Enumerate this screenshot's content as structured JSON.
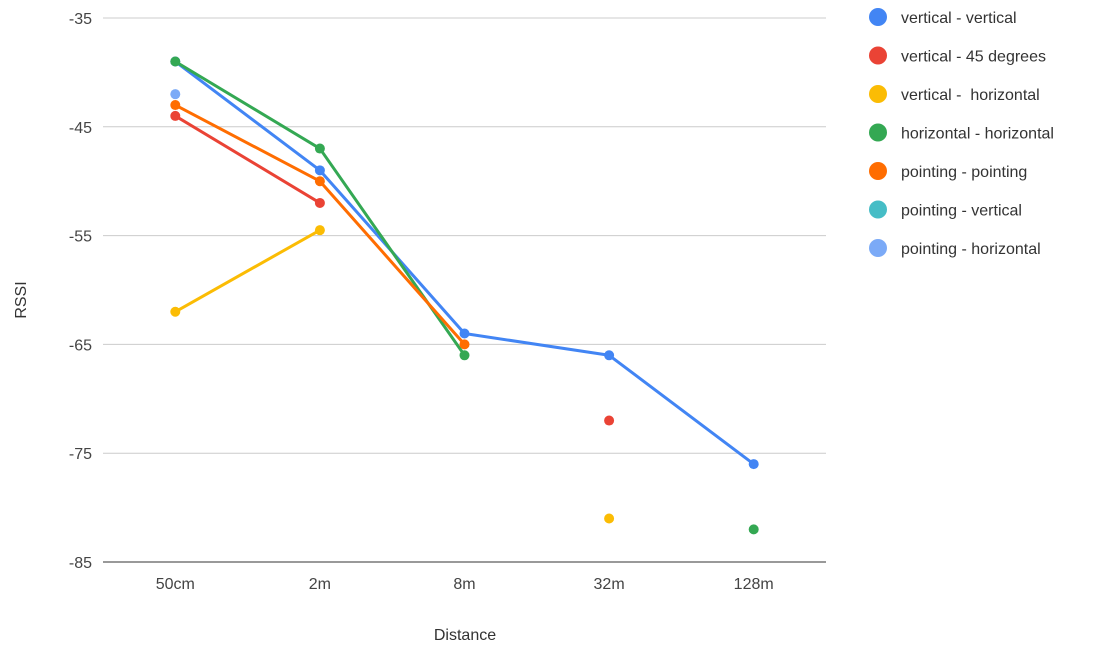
{
  "chart_data": {
    "type": "line",
    "title": "",
    "xlabel": "Distance",
    "ylabel": "RSSI",
    "categories": [
      "50cm",
      "2m",
      "8m",
      "32m",
      "128m"
    ],
    "y_ticks": [
      -35,
      -45,
      -55,
      -65,
      -75,
      -85
    ],
    "ylim": [
      -85,
      -35
    ],
    "grid": true,
    "legend_position": "right",
    "series": [
      {
        "name": "vertical - vertical",
        "color": "#4285F4",
        "values": [
          -39,
          -49,
          -64,
          -66,
          -76
        ]
      },
      {
        "name": "vertical - 45 degrees",
        "color": "#EA4335",
        "values": [
          -44,
          -52,
          null,
          -72,
          null
        ]
      },
      {
        "name": "vertical -  horizontal",
        "color": "#FBBC04",
        "values": [
          -62,
          -54.5,
          null,
          -81,
          null
        ]
      },
      {
        "name": "horizontal - horizontal",
        "color": "#34A853",
        "values": [
          -39,
          -47,
          -66,
          null,
          -82
        ]
      },
      {
        "name": "pointing - pointing",
        "color": "#FF6D01",
        "values": [
          -43,
          -50,
          -65,
          null,
          null
        ]
      },
      {
        "name": "pointing - vertical",
        "color": "#46BDC6",
        "values": [
          null,
          null,
          null,
          null,
          null
        ]
      },
      {
        "name": "pointing - horizontal",
        "color": "#7BAAF7",
        "values": [
          -42,
          null,
          null,
          null,
          null
        ]
      }
    ]
  }
}
